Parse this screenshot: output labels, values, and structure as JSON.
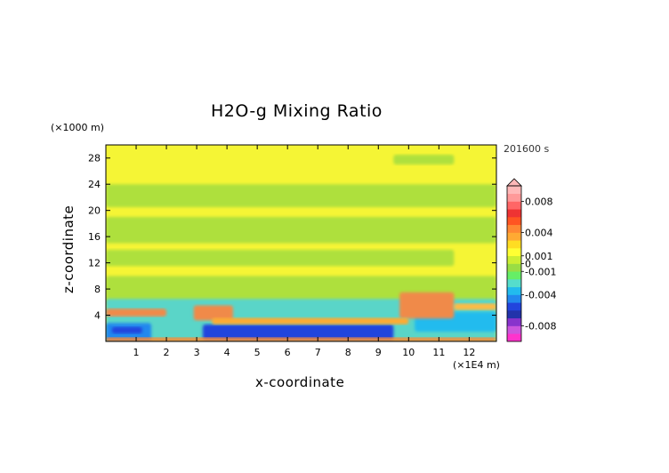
{
  "chart_data": {
    "type": "heatmap",
    "title": "H2O-g Mixing Ratio",
    "xlabel": "x-coordinate",
    "ylabel": "z-coordinate",
    "x_unit": "(×1E4 m)",
    "y_unit": "(×1000 m)",
    "time_label": "201600 s",
    "xlim": [
      0,
      12.9
    ],
    "ylim": [
      0,
      30
    ],
    "x_ticks": [
      1,
      2,
      3,
      4,
      5,
      6,
      7,
      8,
      9,
      10,
      11,
      12
    ],
    "y_ticks": [
      4,
      8,
      12,
      16,
      20,
      24,
      28
    ],
    "colorbar": {
      "labels": [
        "0.008",
        "0.004",
        "0.001",
        "0",
        "-0.001",
        "-0.004",
        "-0.008"
      ],
      "label_values": [
        0.008,
        0.004,
        0.001,
        0,
        -0.001,
        -0.004,
        -0.008
      ],
      "range": [
        -0.01,
        0.01
      ],
      "extend_top": true,
      "colors": [
        "#ff33cc",
        "#cc55dd",
        "#8833cc",
        "#2233aa",
        "#2244dd",
        "#2288ee",
        "#22bbee",
        "#55ddcc",
        "#66ee66",
        "#99dd44",
        "#ccee33",
        "#ffff33",
        "#ffdd22",
        "#ffaa33",
        "#ff8833",
        "#ff5522",
        "#ee3333",
        "#ff6666",
        "#ff9999",
        "#ffb8b8"
      ]
    },
    "field_regions": [
      {
        "x": [
          0,
          12.9
        ],
        "z": [
          0,
          30
        ],
        "level": "0",
        "color": "#f5f535"
      },
      {
        "x": [
          0,
          12.9
        ],
        "z": [
          20.5,
          24
        ],
        "level": "-0.001",
        "color": "#aee03d"
      },
      {
        "x": [
          0,
          12.9
        ],
        "z": [
          15,
          19
        ],
        "level": "-0.001",
        "color": "#aee03d"
      },
      {
        "x": [
          0,
          11.5
        ],
        "z": [
          11.5,
          14
        ],
        "level": "-0.001",
        "color": "#aee03d"
      },
      {
        "x": [
          0,
          12.9
        ],
        "z": [
          5.5,
          10
        ],
        "level": "-0.001",
        "color": "#aee03d"
      },
      {
        "x": [
          9.5,
          11.5
        ],
        "z": [
          27,
          28.5
        ],
        "level": "-0.001",
        "color": "#aee03d"
      },
      {
        "x": [
          0,
          12.9
        ],
        "z": [
          0,
          6.5
        ],
        "level": "-0.002",
        "color": "#5ad5c8"
      },
      {
        "x": [
          0,
          1.5
        ],
        "z": [
          0,
          2.8
        ],
        "level": "-0.004",
        "color": "#2288ee"
      },
      {
        "x": [
          0.2,
          1.2
        ],
        "z": [
          1.2,
          2.2
        ],
        "level": "-0.005",
        "color": "#2244dd"
      },
      {
        "x": [
          3.2,
          9.5
        ],
        "z": [
          0.2,
          2.6
        ],
        "level": "-0.005",
        "color": "#2244dd"
      },
      {
        "x": [
          10.2,
          12.9
        ],
        "z": [
          1.5,
          4.5
        ],
        "level": "-0.003",
        "color": "#22bbee"
      },
      {
        "x": [
          0,
          2
        ],
        "z": [
          3.8,
          5
        ],
        "level": "0.005",
        "color": "#f08a4a"
      },
      {
        "x": [
          2.9,
          4.2
        ],
        "z": [
          3.2,
          5.5
        ],
        "level": "0.005",
        "color": "#f08a4a"
      },
      {
        "x": [
          9.7,
          11.5
        ],
        "z": [
          3.5,
          7.5
        ],
        "level": "0.005",
        "color": "#f08a4a"
      },
      {
        "x": [
          11.5,
          12.9
        ],
        "z": [
          4.8,
          5.8
        ],
        "level": "0.002",
        "color": "#ffbb44"
      },
      {
        "x": [
          3.5,
          10
        ],
        "z": [
          2.6,
          3.6
        ],
        "level": "0.003",
        "color": "#ffaa33"
      },
      {
        "x": [
          0,
          12.9
        ],
        "z": [
          0,
          0.6
        ],
        "level": "0.004",
        "color": "#ff8833"
      }
    ]
  }
}
